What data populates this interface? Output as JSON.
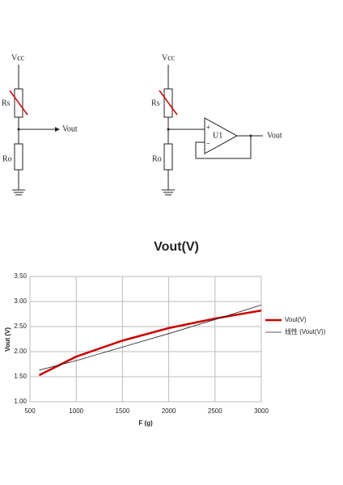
{
  "diagram": {
    "left": {
      "supply": "Vcc",
      "sensor": "Rs",
      "resistor": "Ro",
      "output": "Vout"
    },
    "right": {
      "supply": "Vcc",
      "sensor": "Rs",
      "resistor": "Ro",
      "output": "Vout",
      "amplifier": "U1",
      "plus": "+",
      "minus": "−"
    }
  },
  "chart_data": {
    "type": "line",
    "title": "Vout(V)",
    "x_label": "F (g)",
    "y_label": "Vout (V)",
    "x": [
      600,
      1000,
      1500,
      2000,
      2500,
      3000
    ],
    "series": [
      {
        "name": "Vout(V)",
        "color": "#cc0000",
        "values": [
          1.53,
          1.9,
          2.22,
          2.47,
          2.66,
          2.82
        ]
      },
      {
        "name": "线性 (Vout(V))",
        "color": "#222222",
        "values": [
          1.63,
          1.82,
          2.09,
          2.36,
          2.64,
          2.93
        ]
      }
    ],
    "xlim": [
      500,
      3000
    ],
    "xticks": [
      500,
      1000,
      1500,
      2000,
      2500,
      3000
    ],
    "ylim": [
      1,
      3.5
    ],
    "yticks": [
      {
        "value": 1,
        "label": "1.00"
      },
      {
        "value": 1.5,
        "label": "1.50"
      },
      {
        "value": 2,
        "label": "2.00"
      },
      {
        "value": 2.5,
        "label": "2.50"
      },
      {
        "value": 3,
        "label": "3.00"
      },
      {
        "value": 3.5,
        "label": "3.50"
      }
    ],
    "grid": true,
    "legend": "right"
  }
}
